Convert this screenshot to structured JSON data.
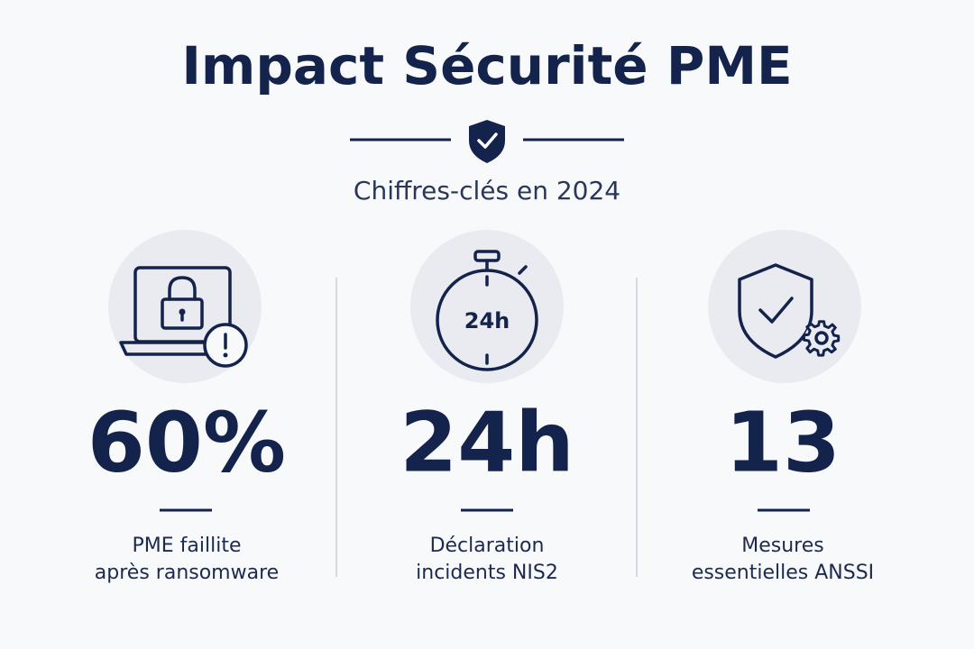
{
  "header": {
    "title": "Impact Sécurité PME",
    "subtitle": "Chiffres-clés en 2024"
  },
  "stats": [
    {
      "value": "60%",
      "label": [
        "PME faillite",
        "après ransomware"
      ]
    },
    {
      "value": "24h",
      "icon_label": "24h",
      "label": [
        "Déclaration",
        "incidents NIS2"
      ]
    },
    {
      "value": "13",
      "label": [
        "Mesures",
        "essentielles ANSSI"
      ]
    }
  ]
}
